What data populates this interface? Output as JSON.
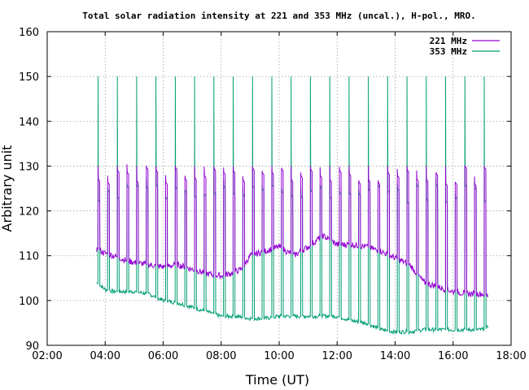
{
  "chart_data": {
    "type": "line",
    "title": "Total solar radiation intensity at 221 and 353 MHz (uncal.), H-pol., MRO.",
    "xlabel": "Time (UT)",
    "ylabel": "Arbitrary unit",
    "xlim": [
      2,
      18
    ],
    "ylim": [
      90,
      160
    ],
    "x_ticks": [
      "02:00",
      "04:00",
      "06:00",
      "08:00",
      "10:00",
      "12:00",
      "14:00",
      "16:00",
      "18:00"
    ],
    "y_ticks": [
      "90",
      "100",
      "110",
      "120",
      "130",
      "140",
      "150",
      "160"
    ],
    "grid": true,
    "legend_position": "top-right",
    "calibration_spikes": {
      "start": 3.75,
      "end": 17.2,
      "interval": 0.333,
      "peak_353": 150,
      "peak_221": 130
    },
    "series": [
      {
        "name": "221 MHz",
        "color": "#9400d3",
        "x": [
          3.7,
          4.0,
          4.3,
          4.7,
          5.0,
          5.5,
          6.0,
          6.5,
          7.0,
          7.5,
          8.0,
          8.3,
          8.7,
          9.0,
          9.5,
          10.0,
          10.5,
          11.0,
          11.5,
          12.0,
          12.5,
          13.0,
          13.5,
          14.0,
          14.5,
          15.0,
          15.5,
          16.0,
          16.5,
          17.0,
          17.2
        ],
        "values": [
          111.5,
          110.5,
          110,
          109,
          108.5,
          108,
          107.5,
          108,
          107,
          106,
          105.5,
          106,
          107,
          110,
          111,
          112,
          110,
          112,
          114.5,
          112.5,
          112.5,
          112,
          111,
          109.5,
          108,
          104,
          103,
          102,
          101.5,
          101.5,
          101
        ]
      },
      {
        "name": "353 MHz",
        "color": "#009e73",
        "x": [
          3.7,
          4.0,
          4.3,
          4.7,
          5.0,
          5.5,
          6.0,
          6.5,
          7.0,
          7.5,
          8.0,
          8.5,
          9.0,
          9.5,
          10.0,
          10.5,
          11.0,
          11.5,
          12.0,
          12.5,
          13.0,
          13.5,
          14.0,
          14.5,
          15.0,
          15.5,
          16.0,
          16.5,
          17.0,
          17.2
        ],
        "values": [
          104,
          102.5,
          102,
          102,
          102,
          101.5,
          100,
          99.5,
          98.5,
          97.5,
          96.5,
          96.5,
          96,
          96,
          96.5,
          96.5,
          96.5,
          96.5,
          96.5,
          95.5,
          95,
          93.5,
          93,
          93,
          93.5,
          93.5,
          93.5,
          93.5,
          93.5,
          94
        ]
      }
    ]
  }
}
